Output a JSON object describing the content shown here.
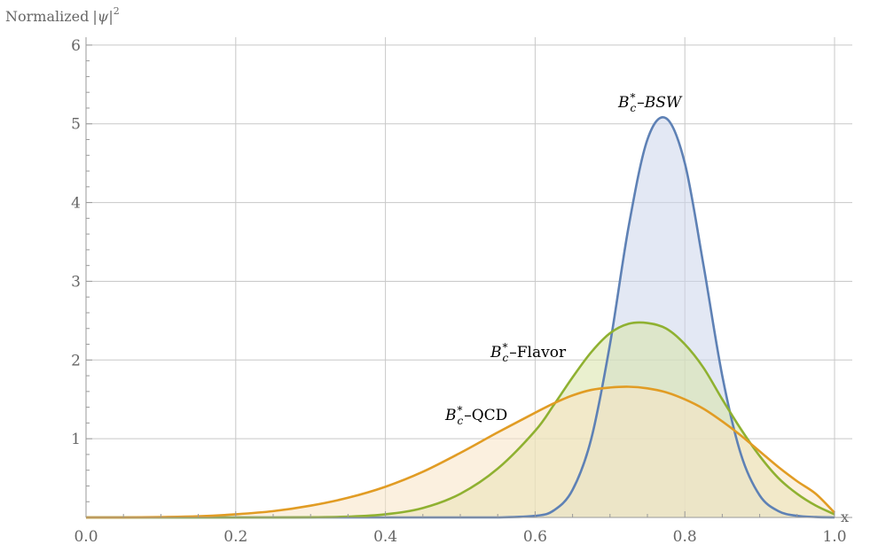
{
  "chart_data": {
    "type": "area",
    "xlabel": "x",
    "ylabel_prefix": "Normalized",
    "ylabel_symbol": "|ψ|",
    "ylabel_power": "2",
    "xlim": [
      0,
      1
    ],
    "ylim": [
      0,
      6.1
    ],
    "xticks": [
      {
        "value": 0.0,
        "label": "0.0"
      },
      {
        "value": 0.2,
        "label": "0.2"
      },
      {
        "value": 0.4,
        "label": "0.4"
      },
      {
        "value": 0.6,
        "label": "0.6"
      },
      {
        "value": 0.8,
        "label": "0.8"
      },
      {
        "value": 1.0,
        "label": "1.0"
      }
    ],
    "yticks": [
      {
        "value": 1,
        "label": "1"
      },
      {
        "value": 2,
        "label": "2"
      },
      {
        "value": 3,
        "label": "3"
      },
      {
        "value": 4,
        "label": "4"
      },
      {
        "value": 5,
        "label": "5"
      },
      {
        "value": 6,
        "label": "6"
      }
    ],
    "grid": true,
    "x": [
      0.0,
      0.05,
      0.1,
      0.15,
      0.2,
      0.25,
      0.3,
      0.35,
      0.4,
      0.45,
      0.5,
      0.55,
      0.6,
      0.625,
      0.65,
      0.675,
      0.7,
      0.725,
      0.75,
      0.775,
      0.8,
      0.825,
      0.85,
      0.875,
      0.9,
      0.925,
      0.95,
      0.975,
      1.0
    ],
    "series": [
      {
        "key": "bsw",
        "base": "B",
        "sup": "*",
        "sub": "c",
        "suffix": "–BSW",
        "suffix_italic": true,
        "color": "#5e81b5",
        "fill": "#ccd6eb",
        "values": [
          0.0,
          0.0,
          0.0,
          0.0,
          0.0,
          0.0,
          0.0,
          0.0,
          0.0,
          0.0,
          0.0,
          0.0,
          0.02,
          0.09,
          0.35,
          1.0,
          2.2,
          3.7,
          4.8,
          5.07,
          4.5,
          3.2,
          1.8,
          0.8,
          0.28,
          0.08,
          0.02,
          0.005,
          0.0
        ]
      },
      {
        "key": "flavor",
        "base": "B",
        "sup": "*",
        "sub": "c",
        "suffix": "–Flavor",
        "suffix_italic": false,
        "color": "#8fb131",
        "fill": "#d9e3a8",
        "values": [
          0.0,
          0.0,
          0.0,
          0.0,
          0.0,
          0.0,
          0.002,
          0.01,
          0.04,
          0.12,
          0.3,
          0.62,
          1.1,
          1.43,
          1.78,
          2.1,
          2.34,
          2.46,
          2.47,
          2.4,
          2.2,
          1.9,
          1.5,
          1.12,
          0.78,
          0.5,
          0.3,
          0.15,
          0.04
        ]
      },
      {
        "key": "qcd",
        "base": "B",
        "sup": "*",
        "sub": "c",
        "suffix": "–QCD",
        "suffix_italic": false,
        "color": "#e19c24",
        "fill": "#f8e3c4",
        "values": [
          0.0,
          0.0,
          0.005,
          0.015,
          0.04,
          0.08,
          0.15,
          0.25,
          0.39,
          0.58,
          0.82,
          1.08,
          1.33,
          1.45,
          1.55,
          1.62,
          1.65,
          1.66,
          1.64,
          1.59,
          1.5,
          1.38,
          1.22,
          1.04,
          0.84,
          0.64,
          0.46,
          0.3,
          0.06
        ]
      }
    ]
  }
}
